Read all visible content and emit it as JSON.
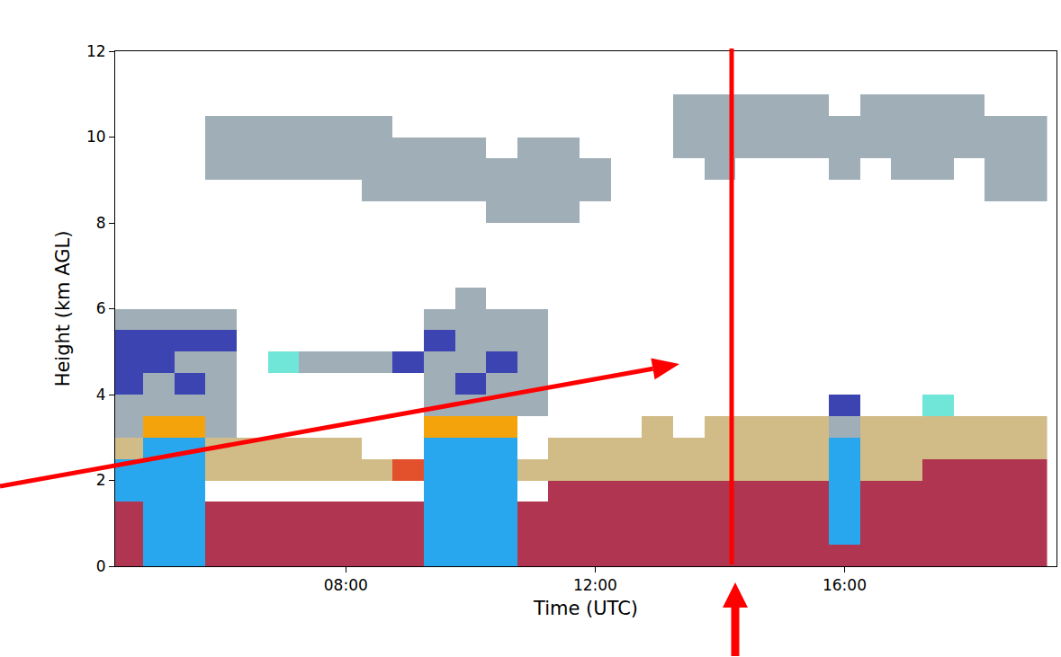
{
  "chart_data": {
    "type": "heatmap",
    "x_label": "Time (UTC)",
    "y_label": "Height (km AGL)",
    "xlim": [
      4.3,
      19.4
    ],
    "xticks": [
      {
        "value": 8,
        "label": "08:00"
      },
      {
        "value": 12,
        "label": "12:00"
      },
      {
        "value": 16,
        "label": "16:00"
      }
    ],
    "ylim": [
      0,
      12
    ],
    "yticks": [
      0,
      2,
      4,
      6,
      8,
      10,
      12
    ],
    "grid": false,
    "colors": [
      "#a0aeb8",
      "#3b44b0",
      "#28a7ef",
      "#f5a30a",
      "#d1bc87",
      "#b03550",
      "#70e6d8",
      "#e2512b"
    ],
    "x": [
      4.5,
      5.0,
      5.5,
      6.0,
      6.5,
      7.0,
      7.5,
      8.0,
      8.5,
      9.0,
      9.5,
      10.0,
      10.5,
      11.0,
      11.5,
      12.0,
      12.5,
      13.0,
      13.5,
      14.0,
      14.5,
      15.0,
      15.5,
      16.0,
      16.5,
      17.0,
      17.5,
      18.0,
      18.5,
      19.0
    ],
    "y": [
      0.25,
      0.75,
      1.25,
      1.75,
      2.25,
      2.75,
      3.25,
      3.75,
      4.25,
      4.75,
      5.25,
      5.75,
      6.25,
      6.75,
      7.25,
      7.75,
      8.25,
      8.75,
      9.25,
      9.75,
      10.25,
      10.75,
      11.25,
      11.75
    ],
    "cells": [
      [
        5,
        2,
        2,
        5,
        5,
        5,
        5,
        5,
        5,
        5,
        2,
        2,
        2,
        5,
        5,
        5,
        5,
        5,
        5,
        5,
        5,
        5,
        5,
        5,
        5,
        5,
        5,
        5,
        5,
        5
      ],
      [
        5,
        2,
        2,
        5,
        5,
        5,
        5,
        5,
        5,
        5,
        2,
        2,
        2,
        5,
        5,
        5,
        5,
        5,
        5,
        5,
        5,
        5,
        5,
        2,
        5,
        5,
        5,
        5,
        5,
        5
      ],
      [
        5,
        2,
        2,
        5,
        5,
        5,
        5,
        5,
        5,
        5,
        2,
        2,
        2,
        5,
        5,
        5,
        5,
        5,
        5,
        5,
        5,
        5,
        5,
        2,
        5,
        5,
        5,
        5,
        5,
        5
      ],
      [
        2,
        2,
        2,
        null,
        null,
        null,
        null,
        null,
        null,
        null,
        2,
        2,
        2,
        null,
        5,
        5,
        5,
        5,
        5,
        5,
        5,
        5,
        5,
        2,
        5,
        5,
        5,
        5,
        5,
        5
      ],
      [
        2,
        2,
        2,
        4,
        4,
        4,
        4,
        4,
        4,
        7,
        2,
        2,
        2,
        4,
        4,
        4,
        4,
        4,
        4,
        4,
        4,
        4,
        4,
        2,
        4,
        4,
        5,
        5,
        5,
        5
      ],
      [
        4,
        2,
        2,
        4,
        4,
        4,
        4,
        4,
        null,
        null,
        2,
        2,
        2,
        null,
        4,
        4,
        4,
        4,
        4,
        4,
        4,
        4,
        4,
        2,
        4,
        4,
        4,
        4,
        4,
        4
      ],
      [
        0,
        3,
        3,
        0,
        null,
        null,
        null,
        null,
        null,
        null,
        3,
        3,
        3,
        null,
        null,
        null,
        null,
        4,
        null,
        4,
        4,
        4,
        4,
        0,
        4,
        4,
        4,
        4,
        4,
        4
      ],
      [
        0,
        0,
        0,
        0,
        null,
        null,
        null,
        null,
        null,
        null,
        0,
        0,
        0,
        0,
        null,
        null,
        null,
        null,
        null,
        null,
        null,
        null,
        null,
        1,
        null,
        null,
        6,
        null,
        null,
        null
      ],
      [
        1,
        0,
        1,
        0,
        null,
        null,
        null,
        null,
        null,
        null,
        0,
        1,
        0,
        0,
        null,
        null,
        null,
        null,
        null,
        null,
        null,
        null,
        null,
        null,
        null,
        null,
        null,
        null,
        null,
        null
      ],
      [
        1,
        1,
        0,
        0,
        null,
        6,
        0,
        0,
        0,
        1,
        0,
        0,
        1,
        0,
        null,
        null,
        null,
        null,
        null,
        null,
        null,
        null,
        null,
        null,
        null,
        null,
        null,
        null,
        null,
        null
      ],
      [
        1,
        1,
        1,
        1,
        null,
        null,
        null,
        null,
        null,
        null,
        1,
        0,
        0,
        0,
        null,
        null,
        null,
        null,
        null,
        null,
        null,
        null,
        null,
        null,
        null,
        null,
        null,
        null,
        null,
        null
      ],
      [
        0,
        0,
        0,
        0,
        null,
        null,
        null,
        null,
        null,
        null,
        0,
        0,
        0,
        0,
        null,
        null,
        null,
        null,
        null,
        null,
        null,
        null,
        null,
        null,
        null,
        null,
        null,
        null,
        null,
        null
      ],
      [
        null,
        null,
        null,
        null,
        null,
        null,
        null,
        null,
        null,
        null,
        null,
        0,
        null,
        null,
        null,
        null,
        null,
        null,
        null,
        null,
        null,
        null,
        null,
        null,
        null,
        null,
        null,
        null,
        null,
        null
      ],
      [
        null,
        null,
        null,
        null,
        null,
        null,
        null,
        null,
        null,
        null,
        null,
        null,
        null,
        null,
        null,
        null,
        null,
        null,
        null,
        null,
        null,
        null,
        null,
        null,
        null,
        null,
        null,
        null,
        null,
        null
      ],
      [
        null,
        null,
        null,
        null,
        null,
        null,
        null,
        null,
        null,
        null,
        null,
        null,
        null,
        null,
        null,
        null,
        null,
        null,
        null,
        null,
        null,
        null,
        null,
        null,
        null,
        null,
        null,
        null,
        null,
        null
      ],
      [
        null,
        null,
        null,
        null,
        null,
        null,
        null,
        null,
        null,
        null,
        null,
        null,
        null,
        null,
        null,
        null,
        null,
        null,
        null,
        null,
        null,
        null,
        null,
        null,
        null,
        null,
        null,
        null,
        null,
        null
      ],
      [
        null,
        null,
        null,
        null,
        null,
        null,
        null,
        null,
        null,
        null,
        null,
        null,
        0,
        0,
        0,
        null,
        null,
        null,
        null,
        null,
        null,
        null,
        null,
        null,
        null,
        null,
        null,
        null,
        null,
        null
      ],
      [
        null,
        null,
        null,
        null,
        null,
        null,
        null,
        null,
        0,
        0,
        0,
        0,
        0,
        0,
        0,
        0,
        null,
        null,
        null,
        null,
        null,
        null,
        null,
        null,
        null,
        null,
        null,
        null,
        0,
        0
      ],
      [
        null,
        null,
        null,
        0,
        0,
        0,
        0,
        0,
        0,
        0,
        0,
        0,
        0,
        0,
        0,
        0,
        null,
        null,
        null,
        0,
        null,
        null,
        null,
        0,
        null,
        0,
        0,
        null,
        0,
        0
      ],
      [
        null,
        null,
        null,
        0,
        0,
        0,
        0,
        0,
        0,
        0,
        0,
        0,
        null,
        0,
        0,
        null,
        null,
        null,
        0,
        0,
        0,
        0,
        0,
        0,
        0,
        0,
        0,
        0,
        0,
        0
      ],
      [
        null,
        null,
        null,
        0,
        0,
        0,
        0,
        0,
        0,
        null,
        null,
        null,
        null,
        null,
        null,
        null,
        null,
        null,
        0,
        0,
        0,
        0,
        0,
        0,
        0,
        0,
        0,
        0,
        0,
        0
      ],
      [
        null,
        null,
        null,
        null,
        null,
        null,
        null,
        null,
        null,
        null,
        null,
        null,
        null,
        null,
        null,
        null,
        null,
        null,
        0,
        0,
        0,
        0,
        0,
        null,
        0,
        0,
        0,
        0,
        null,
        null
      ],
      [
        null,
        null,
        null,
        null,
        null,
        null,
        null,
        null,
        null,
        null,
        null,
        null,
        null,
        null,
        null,
        null,
        null,
        null,
        null,
        null,
        null,
        null,
        null,
        null,
        null,
        null,
        null,
        null,
        null,
        null
      ],
      [
        null,
        null,
        null,
        null,
        null,
        null,
        null,
        null,
        null,
        null,
        null,
        null,
        null,
        null,
        null,
        null,
        null,
        null,
        null,
        null,
        null,
        null,
        null,
        null,
        null,
        null,
        null,
        null,
        null,
        null
      ]
    ]
  }
}
